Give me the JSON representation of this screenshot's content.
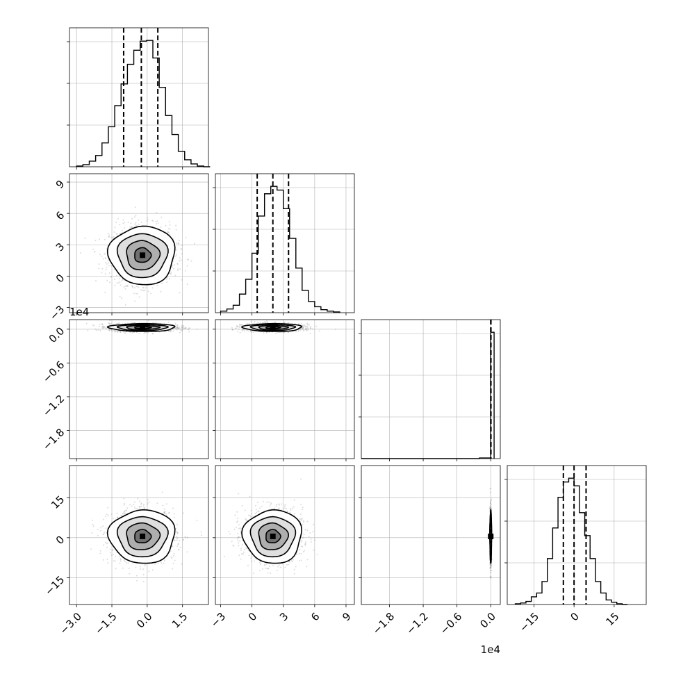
{
  "chart_data": [
    {
      "type": "histogram",
      "panel": "hist-p0",
      "bins": [
        -3.0,
        -2.73,
        -2.46,
        -2.19,
        -1.92,
        -1.65,
        -1.38,
        -1.11,
        -0.84,
        -0.57,
        -0.3,
        -0.03,
        0.24,
        0.51,
        0.78,
        1.05,
        1.32,
        1.59,
        1.86,
        2.13,
        2.4,
        2.67
      ],
      "counts": [
        1,
        3,
        8,
        16,
        34,
        57,
        87,
        118,
        146,
        166,
        179,
        180,
        155,
        113,
        73,
        46,
        22,
        10,
        4,
        1,
        0
      ],
      "quantiles": [
        -1.0,
        -0.25,
        0.45
      ],
      "xlim": [
        -3.3,
        2.6
      ],
      "yticks_visible": false,
      "grid": true
    },
    {
      "type": "histogram",
      "panel": "hist-p1",
      "bins": [
        -3.0,
        -2.4,
        -1.8,
        -1.2,
        -0.6,
        0.0,
        0.6,
        1.2,
        1.8,
        2.4,
        3.0,
        3.6,
        4.2,
        4.8,
        5.4,
        6.0,
        6.6,
        7.2,
        7.8,
        8.4
      ],
      "counts": [
        2,
        5,
        10,
        25,
        45,
        80,
        130,
        160,
        170,
        165,
        140,
        100,
        60,
        30,
        15,
        8,
        4,
        2,
        1
      ],
      "quantiles": [
        0.5,
        2.0,
        3.5
      ],
      "xlim": [
        -3.5,
        9.8
      ],
      "yticks_visible": false,
      "grid": true
    },
    {
      "type": "histogram",
      "panel": "hist-p2",
      "bins": [
        -23000,
        -20000,
        -17000,
        -14000,
        -11000,
        -8000,
        -5000,
        -2000,
        0,
        600
      ],
      "counts": [
        0,
        0,
        0,
        0,
        0,
        0,
        0,
        1,
        200
      ],
      "quantiles": [
        0,
        20,
        40
      ],
      "xlim": [
        -23000,
        1700
      ],
      "offset_label": "1e4",
      "yticks_visible": false,
      "grid": true
    },
    {
      "type": "histogram",
      "panel": "hist-p3",
      "bins": [
        -22,
        -20,
        -18,
        -16,
        -14,
        -12,
        -10,
        -8,
        -6,
        -4,
        -2,
        0,
        2,
        4,
        6,
        8,
        10,
        12,
        14,
        16,
        18,
        20
      ],
      "counts": [
        1,
        2,
        4,
        10,
        15,
        30,
        60,
        100,
        140,
        160,
        165,
        155,
        120,
        90,
        60,
        30,
        15,
        6,
        3,
        1,
        0
      ],
      "quantiles": [
        -4.0,
        0.0,
        4.5
      ],
      "xlim": [
        -25,
        27
      ],
      "yticks_visible": false,
      "grid": true
    },
    {
      "type": "scatter-density",
      "panel": "p1-vs-p0",
      "center": [
        -0.2,
        2.0
      ],
      "spread": [
        0.7,
        1.4
      ],
      "xlim": [
        -3.3,
        2.6
      ],
      "ylim": [
        -3.5,
        9.8
      ],
      "contour_levels": [
        0.5,
        1.0,
        1.5,
        2.0
      ],
      "grid": true
    },
    {
      "type": "scatter-density",
      "panel": "p2-vs-p0",
      "center": [
        -0.2,
        300
      ],
      "spread": [
        0.7,
        350
      ],
      "xlim": [
        -3.3,
        2.6
      ],
      "ylim": [
        -23000,
        1700
      ],
      "contour_levels": [
        0.5,
        1.0,
        1.5,
        2.0
      ],
      "grid": true
    },
    {
      "type": "scatter-density",
      "panel": "p2-vs-p1",
      "center": [
        2.0,
        300
      ],
      "spread": [
        1.4,
        350
      ],
      "xlim": [
        -3.5,
        9.8
      ],
      "ylim": [
        -23000,
        1700
      ],
      "contour_levels": [
        0.5,
        1.0,
        1.5,
        2.0
      ],
      "grid": true
    },
    {
      "type": "scatter-density",
      "panel": "p3-vs-p0",
      "center": [
        -0.2,
        0.5
      ],
      "spread": [
        0.7,
        5.0
      ],
      "xlim": [
        -3.3,
        2.6
      ],
      "ylim": [
        -25,
        27
      ],
      "contour_levels": [
        0.5,
        1.0,
        1.5,
        2.0
      ],
      "grid": true
    },
    {
      "type": "scatter-density",
      "panel": "p3-vs-p1",
      "center": [
        2.0,
        0.5
      ],
      "spread": [
        1.4,
        5.0
      ],
      "xlim": [
        -3.5,
        9.8
      ],
      "ylim": [
        -25,
        27
      ],
      "contour_levels": [
        0.5,
        1.0,
        1.5,
        2.0
      ],
      "grid": true
    },
    {
      "type": "scatter-density",
      "panel": "p3-vs-p2",
      "center": [
        0,
        0.5
      ],
      "spread": [
        60,
        5.0
      ],
      "xlim": [
        -23000,
        1700
      ],
      "ylim": [
        -25,
        27
      ],
      "contour_levels": [
        0.5,
        1.0,
        1.5,
        2.0
      ],
      "grid": true
    }
  ],
  "axes": {
    "p0": {
      "ticks": [
        -3.0,
        -1.5,
        0.0,
        1.5
      ],
      "labels": [
        "−3.0",
        "−1.5",
        "0.0",
        "1.5"
      ]
    },
    "p1": {
      "ticks": [
        -3,
        0,
        3,
        6,
        9
      ],
      "labels": [
        "−3",
        "0",
        "3",
        "6",
        "9"
      ]
    },
    "p2": {
      "ticks": [
        -18000,
        -12000,
        -6000,
        0
      ],
      "labels": [
        "−1.8",
        "−1.2",
        "−0.6",
        "0.0"
      ],
      "offset_label": "1e4"
    },
    "p3": {
      "ticks": [
        -15,
        0,
        15
      ],
      "labels": [
        "−15",
        "0",
        "15"
      ]
    }
  },
  "style": {
    "line_color": "#000000",
    "grid_color": "#b0b0b0",
    "frame_color": "#000000"
  }
}
